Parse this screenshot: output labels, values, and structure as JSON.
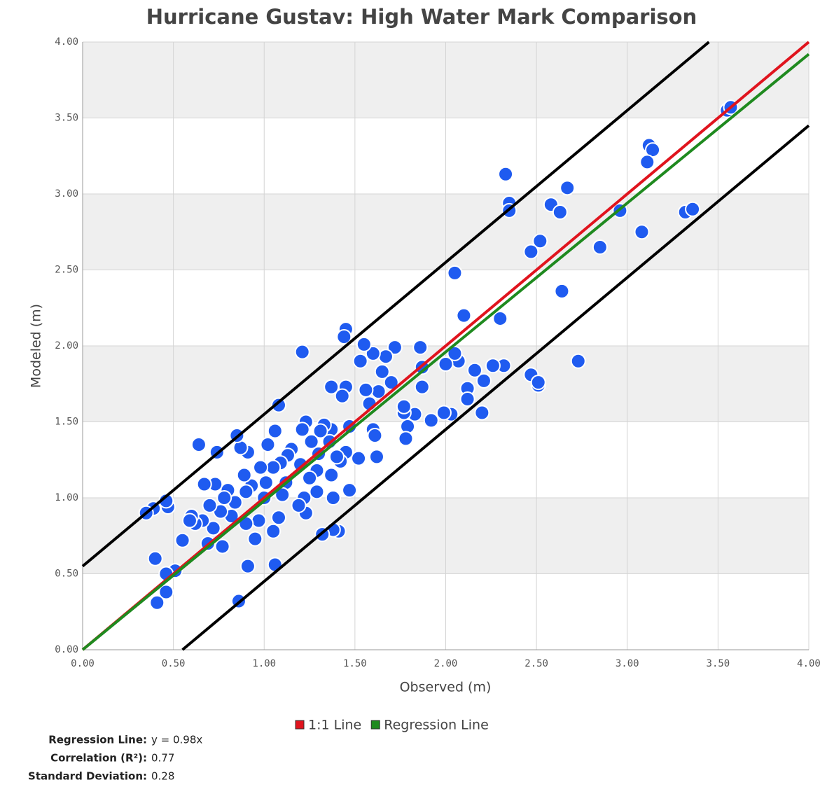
{
  "chart_data": {
    "type": "scatter",
    "title": "Hurricane Gustav: High Water Mark Comparison",
    "x_label": "Observed (m)",
    "y_label": "Modeled (m)",
    "xlim": [
      0,
      4
    ],
    "ylim": [
      0,
      4
    ],
    "xticks": [
      {
        "value": 0,
        "label": "0.00"
      },
      {
        "value": 0.5,
        "label": "0.50"
      },
      {
        "value": 1,
        "label": "1.00"
      },
      {
        "value": 1.5,
        "label": "1.50"
      },
      {
        "value": 2,
        "label": "2.00"
      },
      {
        "value": 2.5,
        "label": "2.50"
      },
      {
        "value": 3,
        "label": "3.00"
      },
      {
        "value": 3.5,
        "label": "3.50"
      },
      {
        "value": 4,
        "label": "4.00"
      }
    ],
    "yticks": [
      {
        "value": 0,
        "label": "0.00"
      },
      {
        "value": 0.5,
        "label": "0.50"
      },
      {
        "value": 1,
        "label": "1.00"
      },
      {
        "value": 1.5,
        "label": "1.50"
      },
      {
        "value": 2,
        "label": "2.00"
      },
      {
        "value": 2.5,
        "label": "2.50"
      },
      {
        "value": 3,
        "label": "3.00"
      },
      {
        "value": 3.5,
        "label": "3.50"
      },
      {
        "value": 4,
        "label": "4.00"
      }
    ],
    "grid": true,
    "point_color": "#1f5bf0",
    "points": {
      "x": [
        3.55,
        3.57,
        3.12,
        3.14,
        3.11,
        2.33,
        2.35,
        2.35,
        2.67,
        2.58,
        2.63,
        2.96,
        3.08,
        3.32,
        3.36,
        2.52,
        2.47,
        2.85,
        2.64,
        2.05,
        2.1,
        2.3,
        2.73,
        2.47,
        2.51,
        2.51,
        2.32,
        2.26,
        2.21,
        2.16,
        2.12,
        2.12,
        2.2,
        2.07,
        2.05,
        2.0,
        2.03,
        1.99,
        1.92,
        1.86,
        1.87,
        1.87,
        1.83,
        1.79,
        1.78,
        1.77,
        1.77,
        1.72,
        1.7,
        1.67,
        1.65,
        1.63,
        1.6,
        1.58,
        1.6,
        1.61,
        1.62,
        1.55,
        1.53,
        1.56,
        1.52,
        1.45,
        1.44,
        1.45,
        1.43,
        1.47,
        1.45,
        1.47,
        1.42,
        1.4,
        1.41,
        1.38,
        1.32,
        1.37,
        1.37,
        1.36,
        1.33,
        1.31,
        1.3,
        1.29,
        1.37,
        1.38,
        1.29,
        1.26,
        1.25,
        1.23,
        1.21,
        1.21,
        1.2,
        1.22,
        1.23,
        1.19,
        1.15,
        1.13,
        1.12,
        1.1,
        1.09,
        1.08,
        1.08,
        1.06,
        1.05,
        1.05,
        1.06,
        1.02,
        1.01,
        1.0,
        0.98,
        0.97,
        0.95,
        0.93,
        0.91,
        0.9,
        0.9,
        0.91,
        0.89,
        0.87,
        0.86,
        0.85,
        0.84,
        0.82,
        0.8,
        0.78,
        0.77,
        0.76,
        0.74,
        0.73,
        0.72,
        0.7,
        0.69,
        0.67,
        0.66,
        0.64,
        0.62,
        0.6,
        0.59,
        0.55,
        0.51,
        0.47,
        0.46,
        0.46,
        0.46,
        0.41,
        0.4,
        0.39,
        0.35
      ],
      "y": [
        3.55,
        3.57,
        3.32,
        3.29,
        3.21,
        3.13,
        2.94,
        2.89,
        3.04,
        2.93,
        2.88,
        2.89,
        2.75,
        2.88,
        2.9,
        2.69,
        2.62,
        2.65,
        2.36,
        2.48,
        2.2,
        2.18,
        1.9,
        1.81,
        1.74,
        1.76,
        1.87,
        1.87,
        1.77,
        1.84,
        1.72,
        1.65,
        1.56,
        1.9,
        1.95,
        1.88,
        1.55,
        1.56,
        1.51,
        1.99,
        1.86,
        1.73,
        1.55,
        1.47,
        1.39,
        1.56,
        1.6,
        1.99,
        1.76,
        1.93,
        1.83,
        1.7,
        1.95,
        1.62,
        1.45,
        1.41,
        1.27,
        2.01,
        1.9,
        1.71,
        1.26,
        2.11,
        2.06,
        1.73,
        1.67,
        1.47,
        1.3,
        1.05,
        1.24,
        1.27,
        0.78,
        0.79,
        0.76,
        1.73,
        1.45,
        1.37,
        1.48,
        1.44,
        1.29,
        1.18,
        1.15,
        1.0,
        1.04,
        1.37,
        1.13,
        1.5,
        1.96,
        1.45,
        1.22,
        1.0,
        0.9,
        0.95,
        1.32,
        1.28,
        1.1,
        1.02,
        1.23,
        1.61,
        0.87,
        1.44,
        1.2,
        0.78,
        0.56,
        1.35,
        1.1,
        1.0,
        1.2,
        0.85,
        0.73,
        1.08,
        1.3,
        1.04,
        0.83,
        0.55,
        1.15,
        1.33,
        0.32,
        1.41,
        0.97,
        0.88,
        1.05,
        1.0,
        0.68,
        0.91,
        1.3,
        1.09,
        0.8,
        0.95,
        0.7,
        1.09,
        0.85,
        1.35,
        0.83,
        0.88,
        0.85,
        0.72,
        0.52,
        0.94,
        0.98,
        0.5,
        0.38,
        0.31,
        0.6,
        0.93,
        0.9
      ]
    },
    "lines": [
      {
        "color": "#000000",
        "x": [
          0,
          3.45
        ],
        "y": [
          0.55,
          4
        ]
      },
      {
        "color": "#000000",
        "x": [
          0.55,
          4
        ],
        "y": [
          0,
          3.45
        ]
      },
      {
        "name": "1:1 Line",
        "color": "#e0141e",
        "x": [
          0,
          4
        ],
        "y": [
          0,
          4
        ]
      },
      {
        "name": "Regression Line",
        "color": "#1f8a1f",
        "x": [
          0,
          4
        ],
        "y": [
          0,
          3.92
        ]
      }
    ],
    "stats": [
      {
        "label": "Regression Line:",
        "value": "y = 0.98x"
      },
      {
        "label": "Correlation (R²):",
        "value": "0.77"
      },
      {
        "label": "Standard Deviation:",
        "value": "0.28"
      }
    ]
  }
}
